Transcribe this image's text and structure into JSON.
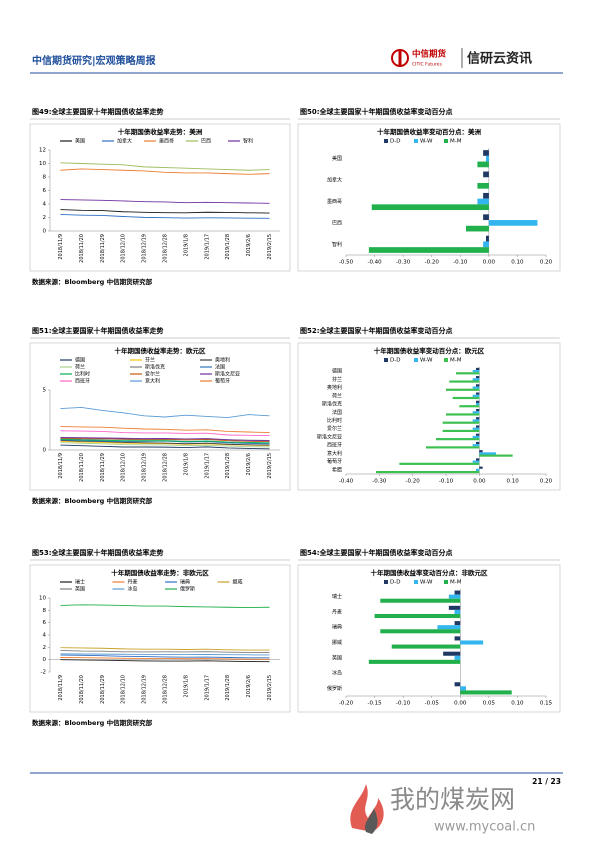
{
  "header": {
    "left": "中信期货研究|宏观策略周报",
    "logo_text": "中信期货",
    "logo_sub": "CITIC Futures",
    "brand": "信研云资讯"
  },
  "chart_data": [
    {
      "type": "line",
      "figure_title": "图49:全球主要国家十年期国债收益率走势",
      "title": "十年期国债收益率走势：美洲",
      "source": "数据来源：Bloomberg  中信期货研究部",
      "categories": [
        "2018/11/9",
        "2018/11/20",
        "2018/11/29",
        "2018/12/10",
        "2018/12/19",
        "2018/12/28",
        "2019/1/8",
        "2019/1/17",
        "2019/1/28",
        "2019/2/6",
        "2019/2/15"
      ],
      "ylim": [
        0,
        12
      ],
      "yticks": [
        0,
        2,
        4,
        6,
        8,
        10,
        12
      ],
      "series": [
        {
          "name": "美国",
          "color": "#1a1a1a",
          "values": [
            3.18,
            3.06,
            3.03,
            2.85,
            2.77,
            2.72,
            2.7,
            2.78,
            2.75,
            2.7,
            2.66
          ]
        },
        {
          "name": "加拿大",
          "color": "#2f6fc4",
          "values": [
            2.45,
            2.35,
            2.3,
            2.15,
            2.02,
            1.97,
            1.92,
            1.95,
            1.93,
            1.9,
            1.88
          ]
        },
        {
          "name": "墨西哥",
          "color": "#ed7d31",
          "values": [
            9.0,
            9.2,
            9.1,
            9.0,
            8.9,
            8.7,
            8.6,
            8.6,
            8.5,
            8.4,
            8.5
          ]
        },
        {
          "name": "巴西",
          "color": "#9bbb59",
          "values": [
            10.1,
            10.0,
            9.9,
            9.8,
            9.5,
            9.4,
            9.3,
            9.2,
            9.1,
            9.0,
            9.1
          ]
        },
        {
          "name": "智利",
          "color": "#7030a0",
          "values": [
            4.65,
            4.6,
            4.55,
            4.45,
            4.35,
            4.3,
            4.2,
            4.25,
            4.2,
            4.15,
            4.1
          ]
        }
      ]
    },
    {
      "type": "bar",
      "orientation": "horizontal",
      "figure_title": "图50:全球主要国家十年期国债收益率变动百分点",
      "title": "十年期国债收益率变动百分点：美洲",
      "source": "",
      "categories": [
        "美国",
        "加拿大",
        "墨西哥",
        "巴西",
        "智利"
      ],
      "xlim": [
        -0.5,
        0.2
      ],
      "xticks": [
        {
          "value": -0.5,
          "label": "-0.50"
        },
        {
          "value": -0.4,
          "label": "-0.40"
        },
        {
          "value": -0.3,
          "label": "-0.30"
        },
        {
          "value": -0.2,
          "label": "-0.20"
        },
        {
          "value": -0.1,
          "label": "-0.10"
        },
        {
          "value": 0,
          "label": "0.00"
        },
        {
          "value": 0.1,
          "label": "0.10"
        },
        {
          "value": 0.2,
          "label": "0.20"
        }
      ],
      "series": [
        {
          "name": "D-D",
          "color": "#1f3864",
          "values": [
            -0.02,
            -0.02,
            -0.02,
            -0.02,
            -0.01
          ]
        },
        {
          "name": "W-W",
          "color": "#33b5f0",
          "values": [
            -0.01,
            0.0,
            -0.04,
            0.17,
            -0.02
          ]
        },
        {
          "name": "M-M",
          "color": "#21b04b",
          "values": [
            -0.04,
            -0.04,
            -0.41,
            -0.08,
            -0.42
          ]
        }
      ]
    },
    {
      "type": "line",
      "figure_title": "图51:全球主要国家十年期国债收益率走势",
      "title": "十年期国债收益率走势：欧元区",
      "source": "数据来源：Bloomberg  中信期货研究部",
      "categories": [
        "2018/11/9",
        "2018/11/20",
        "2018/11/29",
        "2018/12/10",
        "2018/12/19",
        "2018/12/28",
        "2019/1/8",
        "2019/1/17",
        "2019/1/28",
        "2019/2/6",
        "2019/2/15"
      ],
      "ylim": [
        0,
        5
      ],
      "yticks": [
        0,
        5
      ],
      "series": [
        {
          "name": "德国",
          "color": "#1f3864",
          "values": [
            0.41,
            0.36,
            0.31,
            0.25,
            0.25,
            0.24,
            0.2,
            0.26,
            0.17,
            0.13,
            0.1
          ]
        },
        {
          "name": "芬兰",
          "color": "#ffc000",
          "values": [
            0.72,
            0.66,
            0.63,
            0.57,
            0.55,
            0.54,
            0.48,
            0.52,
            0.44,
            0.4,
            0.38
          ]
        },
        {
          "name": "奥地利",
          "color": "#404040",
          "values": [
            0.8,
            0.74,
            0.7,
            0.64,
            0.6,
            0.58,
            0.52,
            0.57,
            0.48,
            0.43,
            0.41
          ]
        },
        {
          "name": "荷兰",
          "color": "#a9d18e",
          "values": [
            0.62,
            0.56,
            0.52,
            0.45,
            0.43,
            0.42,
            0.36,
            0.4,
            0.33,
            0.28,
            0.26
          ]
        },
        {
          "name": "斯洛伐克",
          "color": "#7f7f7f",
          "values": [
            0.95,
            0.9,
            0.92,
            0.88,
            0.85,
            0.86,
            0.84,
            0.88,
            0.85,
            0.82,
            0.8
          ]
        },
        {
          "name": "法国",
          "color": "#2e75b6",
          "values": [
            0.84,
            0.78,
            0.74,
            0.7,
            0.71,
            0.75,
            0.66,
            0.7,
            0.6,
            0.55,
            0.52
          ]
        },
        {
          "name": "比利时",
          "color": "#00b050",
          "values": [
            0.9,
            0.84,
            0.82,
            0.78,
            0.76,
            0.78,
            0.7,
            0.75,
            0.66,
            0.62,
            0.6
          ]
        },
        {
          "name": "爱尔兰",
          "color": "#c55a11",
          "values": [
            1.0,
            0.95,
            0.94,
            0.92,
            0.9,
            0.91,
            0.85,
            0.88,
            0.78,
            0.72,
            0.7
          ]
        },
        {
          "name": "斯洛文尼亚",
          "color": "#7030a0",
          "values": [
            1.05,
            1.02,
            1.0,
            0.98,
            0.95,
            0.96,
            0.92,
            0.95,
            0.86,
            0.8,
            0.78
          ]
        },
        {
          "name": "西班牙",
          "color": "#ff66cc",
          "values": [
            1.6,
            1.58,
            1.55,
            1.45,
            1.42,
            1.42,
            1.38,
            1.4,
            1.25,
            1.22,
            1.2
          ]
        },
        {
          "name": "意大利",
          "color": "#5b9bd5",
          "values": [
            3.45,
            3.55,
            3.3,
            3.1,
            2.85,
            2.75,
            2.9,
            2.8,
            2.7,
            2.95,
            2.85
          ]
        },
        {
          "name": "葡萄牙",
          "color": "#ed7d31",
          "values": [
            1.95,
            1.92,
            1.9,
            1.82,
            1.75,
            1.72,
            1.65,
            1.68,
            1.55,
            1.5,
            1.45
          ]
        }
      ]
    },
    {
      "type": "bar",
      "orientation": "horizontal",
      "figure_title": "图52:全球主要国家十年期国债收益率变动百分点",
      "title": "十年期国债收益率变动百分点：欧元区",
      "source": "",
      "categories": [
        "德国",
        "芬兰",
        "奥地利",
        "荷兰",
        "斯洛伐克",
        "法国",
        "比利时",
        "爱尔兰",
        "斯洛文尼亚",
        "西班牙",
        "意大利",
        "葡萄牙",
        "希腊"
      ],
      "xlim": [
        -0.4,
        0.2
      ],
      "xticks": [
        {
          "value": -0.4,
          "label": "-0.40"
        },
        {
          "value": -0.3,
          "label": "-0.30"
        },
        {
          "value": -0.2,
          "label": "-0.20"
        },
        {
          "value": -0.1,
          "label": "-0.10"
        },
        {
          "value": 0,
          "label": "0.00"
        },
        {
          "value": 0.1,
          "label": "0.10"
        },
        {
          "value": 0.2,
          "label": "0.20"
        }
      ],
      "series": [
        {
          "name": "D-D",
          "color": "#1f3864",
          "values": [
            -0.01,
            -0.01,
            -0.01,
            -0.01,
            -0.01,
            -0.01,
            -0.01,
            -0.01,
            -0.01,
            -0.01,
            0.01,
            -0.01,
            0.01
          ]
        },
        {
          "name": "W-W",
          "color": "#33b5f0",
          "values": [
            -0.02,
            -0.02,
            -0.02,
            -0.02,
            -0.01,
            -0.02,
            -0.02,
            -0.02,
            -0.02,
            -0.02,
            0.05,
            -0.02,
            -0.01
          ]
        },
        {
          "name": "M-M",
          "color": "#3cc04f",
          "values": [
            -0.07,
            -0.09,
            -0.1,
            -0.08,
            -0.06,
            -0.1,
            -0.11,
            -0.11,
            -0.13,
            -0.16,
            0.1,
            -0.24,
            -0.31
          ]
        }
      ]
    },
    {
      "type": "line",
      "figure_title": "图53:全球主要国家十年期国债收益率走势",
      "title": "十年期国债收益率走势：非欧元区",
      "source": "数据来源：Bloomberg  中信期货研究部",
      "categories": [
        "2018/11/9",
        "2018/11/20",
        "2018/11/29",
        "2018/12/10",
        "2018/12/19",
        "2018/12/28",
        "2019/1/8",
        "2019/1/17",
        "2019/1/28",
        "2019/2/6",
        "2019/2/15"
      ],
      "ylim": [
        -2,
        10
      ],
      "yticks": [
        -2,
        0,
        2,
        4,
        6,
        8,
        10
      ],
      "series": [
        {
          "name": "瑞士",
          "color": "#1a1a1a",
          "values": [
            0.0,
            -0.05,
            -0.08,
            -0.15,
            -0.2,
            -0.22,
            -0.22,
            -0.18,
            -0.25,
            -0.3,
            -0.32
          ]
        },
        {
          "name": "丹麦",
          "color": "#ed7d31",
          "values": [
            0.35,
            0.32,
            0.28,
            0.22,
            0.2,
            0.2,
            0.15,
            0.18,
            0.12,
            0.08,
            0.05
          ]
        },
        {
          "name": "瑞典",
          "color": "#2f6fc4",
          "values": [
            0.75,
            0.7,
            0.65,
            0.55,
            0.5,
            0.45,
            0.4,
            0.42,
            0.35,
            0.3,
            0.3
          ]
        },
        {
          "name": "挪威",
          "color": "#c9a227",
          "values": [
            1.95,
            1.9,
            1.85,
            1.75,
            1.7,
            1.7,
            1.65,
            1.7,
            1.6,
            1.55,
            1.55
          ]
        },
        {
          "name": "英国",
          "color": "#7f7f7f",
          "values": [
            1.5,
            1.4,
            1.38,
            1.28,
            1.25,
            1.27,
            1.25,
            1.3,
            1.22,
            1.18,
            1.15
          ]
        },
        {
          "name": "冰岛",
          "color": "#5b9bd5",
          "values": [
            0.95,
            0.92,
            0.9,
            0.88,
            0.85,
            0.85,
            0.82,
            0.84,
            0.8,
            0.78,
            0.76
          ]
        },
        {
          "name": "俄罗斯",
          "color": "#21b04b",
          "values": [
            8.8,
            8.9,
            8.85,
            8.8,
            8.7,
            8.7,
            8.6,
            8.55,
            8.5,
            8.45,
            8.5
          ]
        }
      ]
    },
    {
      "type": "bar",
      "orientation": "horizontal",
      "figure_title": "图54:全球主要国家十年期国债收益率变动百分点",
      "title": "十年期国债收益率变动百分点：非欧元区",
      "source": "",
      "categories": [
        "瑞士",
        "丹麦",
        "瑞典",
        "挪威",
        "英国",
        "冰岛",
        "俄罗斯"
      ],
      "xlim": [
        -0.2,
        0.15
      ],
      "xticks": [
        {
          "value": -0.2,
          "label": "-0.20"
        },
        {
          "value": -0.15,
          "label": "-0.15"
        },
        {
          "value": -0.1,
          "label": "-0.10"
        },
        {
          "value": -0.05,
          "label": "-0.05"
        },
        {
          "value": 0,
          "label": "0.00"
        },
        {
          "value": 0.05,
          "label": "0.05"
        },
        {
          "value": 0.1,
          "label": "0.10"
        },
        {
          "value": 0.15,
          "label": "0.15"
        }
      ],
      "series": [
        {
          "name": "D-D",
          "color": "#1f3864",
          "values": [
            -0.01,
            -0.02,
            -0.01,
            -0.01,
            -0.03,
            0.0,
            -0.01
          ]
        },
        {
          "name": "W-W",
          "color": "#33b5f0",
          "values": [
            -0.02,
            -0.01,
            -0.04,
            0.04,
            -0.01,
            0.0,
            0.01
          ]
        },
        {
          "name": "M-M",
          "color": "#21b04b",
          "values": [
            -0.14,
            -0.15,
            -0.14,
            -0.12,
            -0.16,
            0.0,
            0.09
          ]
        }
      ]
    }
  ],
  "footer": {
    "page": "21 / 23"
  },
  "watermark": {
    "name": "我的煤炭网",
    "url": "www.mycoal.cn"
  }
}
